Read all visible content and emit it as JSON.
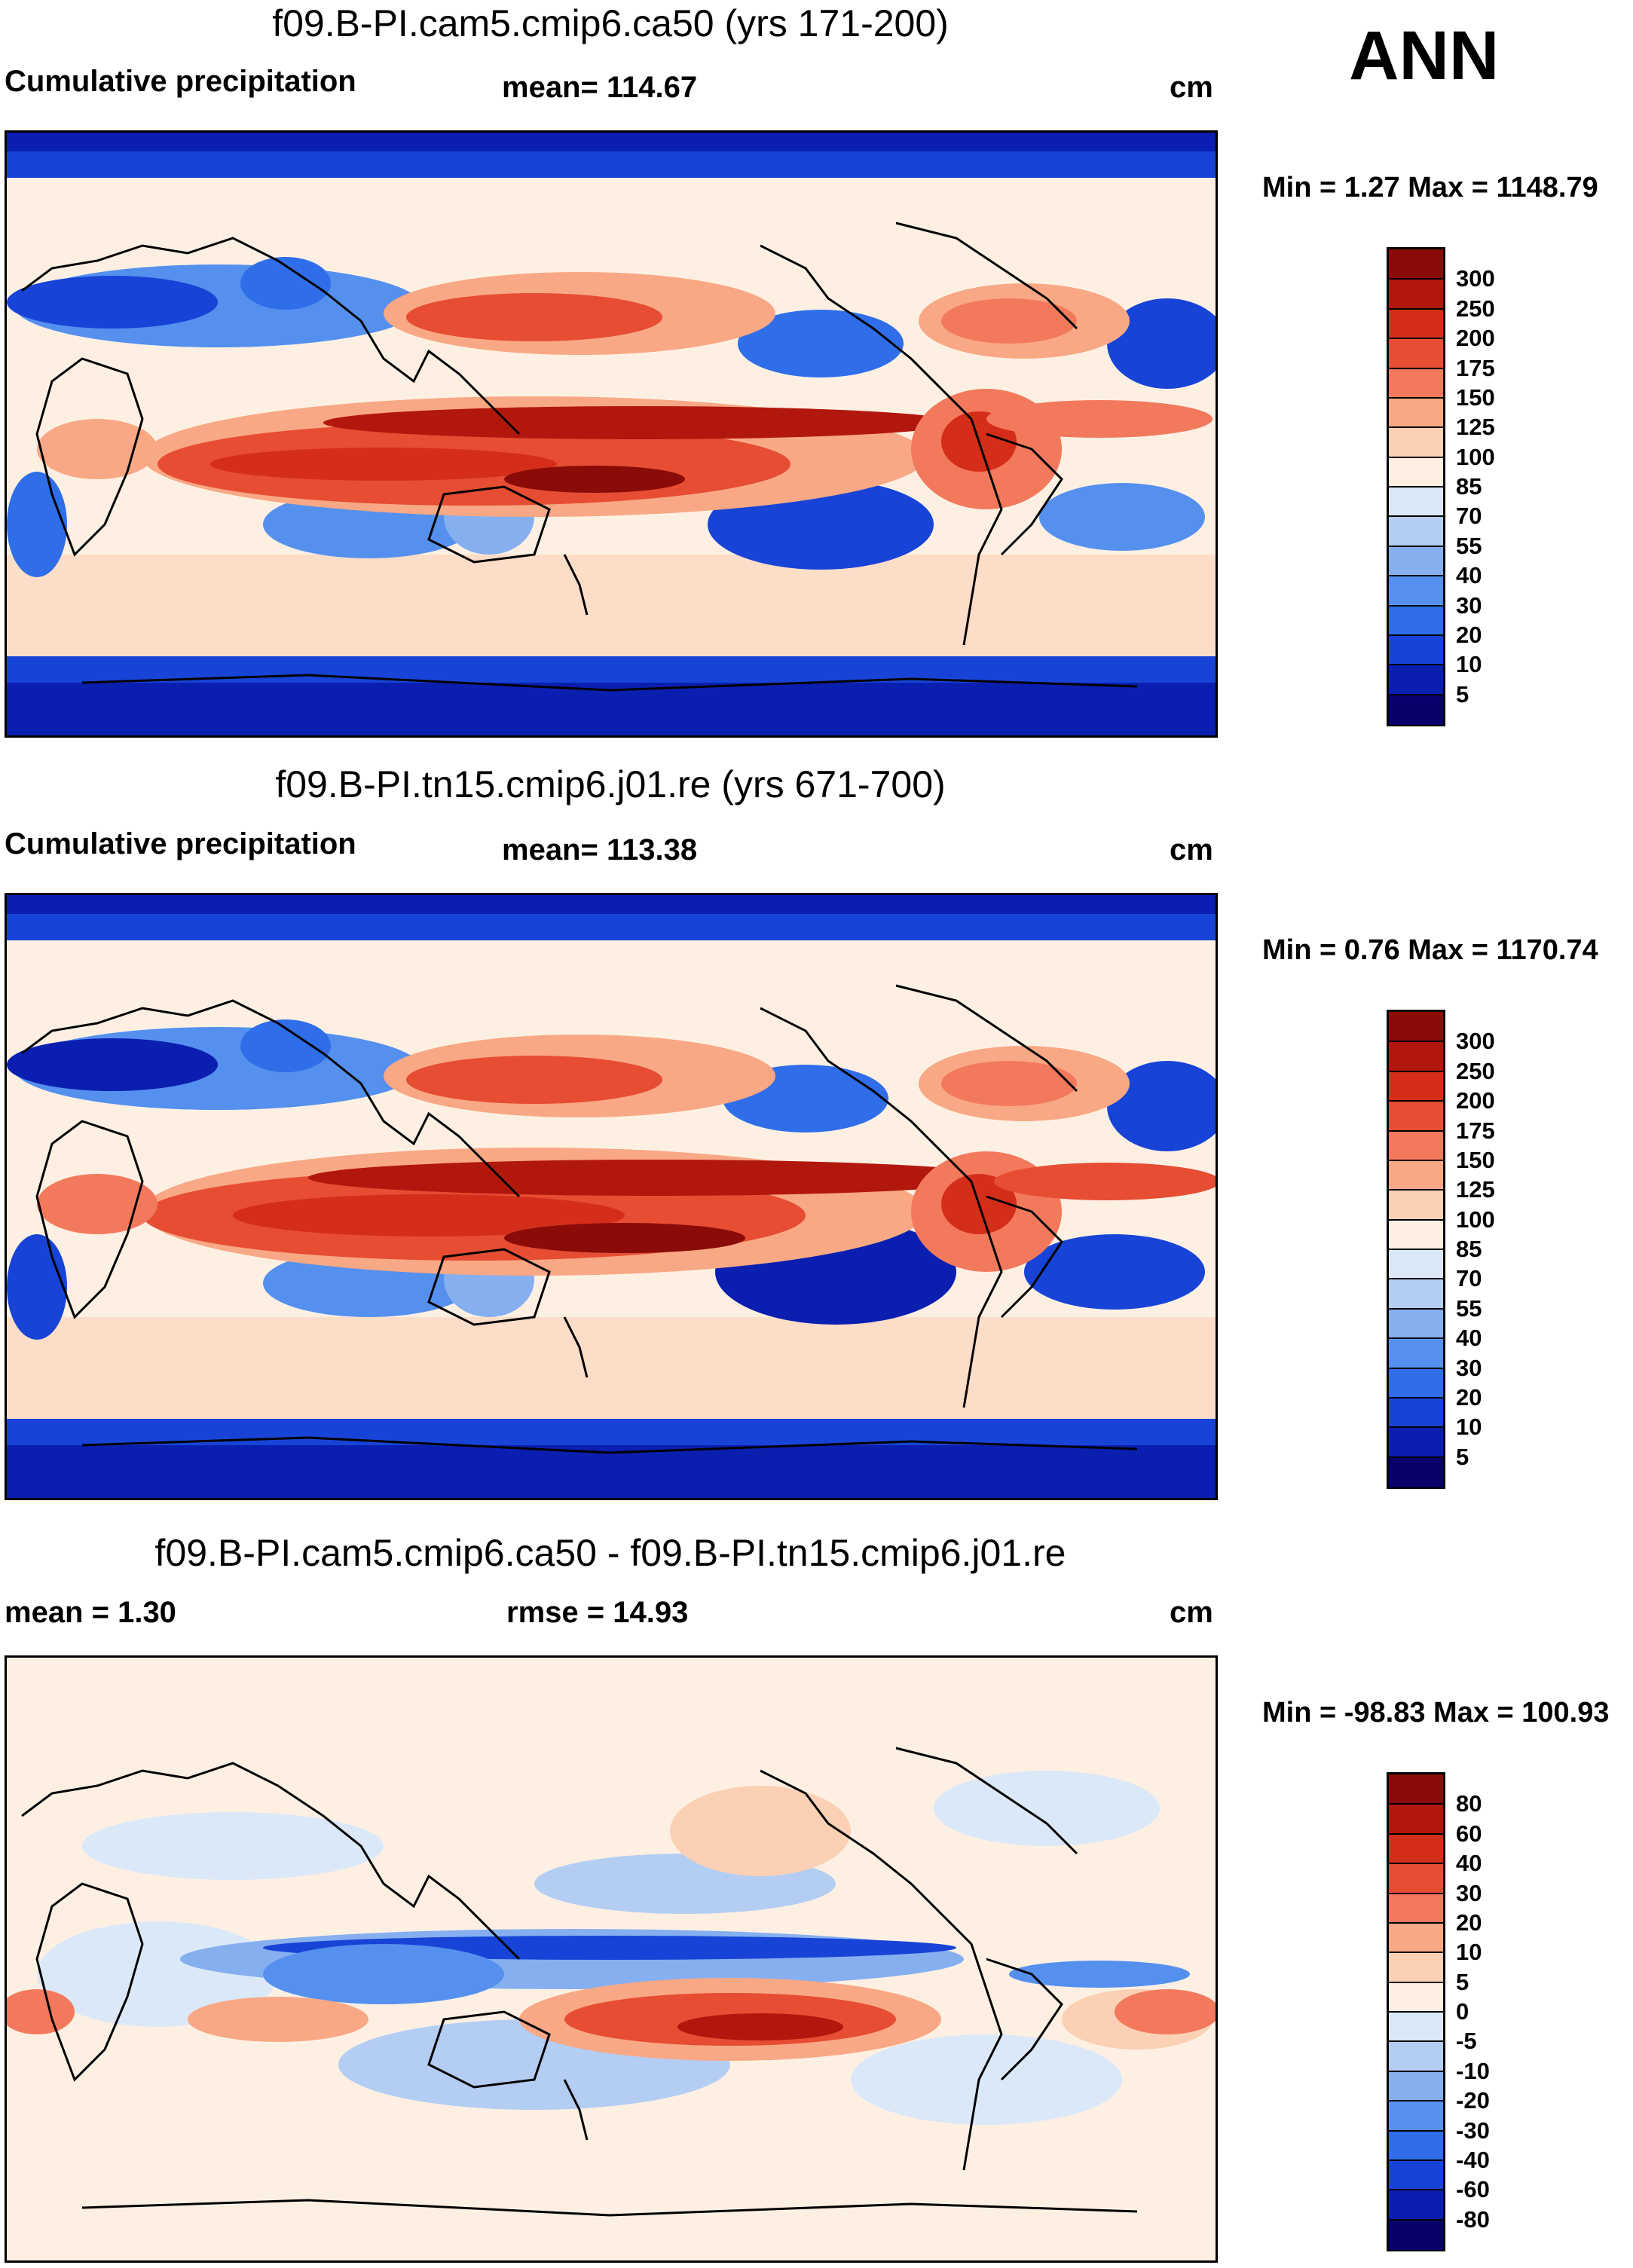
{
  "season": "ANN",
  "units_note": "cm",
  "colors": {
    "precip_scale": [
      "#08006b",
      "#0a1fb0",
      "#1744d6",
      "#2f6ee8",
      "#5590ef",
      "#86afef",
      "#b4cdf3",
      "#dbe8f8",
      "#fdf0e3",
      "#fbd0b4",
      "#f8a884",
      "#f3795c",
      "#e64d33",
      "#d42e1a",
      "#b2170d",
      "#8a0b07"
    ],
    "diff_scale": [
      "#08006b",
      "#0a1fb0",
      "#1744d6",
      "#2f6ee8",
      "#5590ef",
      "#86afef",
      "#b4cdf3",
      "#dbe8f8",
      "#fdf0e3",
      "#fbd0b4",
      "#f8a884",
      "#f3795c",
      "#e64d33",
      "#d42e1a",
      "#b2170d",
      "#8a0b07"
    ]
  },
  "panels": [
    {
      "title": "f09.B-PI.cam5.cmip6.ca50 (yrs 171-200)",
      "left_label": "Cumulative precipitation",
      "center_label": "mean= 114.67",
      "right_label": "cm",
      "minmax": "Min =   1.27 Max = 1148.79",
      "colorbar_labels": [
        "300",
        "250",
        "200",
        "175",
        "150",
        "125",
        "100",
        "85",
        "70",
        "55",
        "40",
        "30",
        "20",
        "10",
        "5"
      ]
    },
    {
      "title": "f09.B-PI.tn15.cmip6.j01.re (yrs 671-700)",
      "left_label": "Cumulative precipitation",
      "center_label": "mean= 113.38",
      "right_label": "cm",
      "minmax": "Min =   0.76 Max = 1170.74",
      "colorbar_labels": [
        "300",
        "250",
        "200",
        "175",
        "150",
        "125",
        "100",
        "85",
        "70",
        "55",
        "40",
        "30",
        "20",
        "10",
        "5"
      ]
    },
    {
      "title": "f09.B-PI.cam5.cmip6.ca50 - f09.B-PI.tn15.cmip6.j01.re",
      "left_label": "mean =   1.30",
      "center_label": "rmse =  14.93",
      "right_label": "cm",
      "minmax": "Min = -98.83 Max = 100.93",
      "colorbar_labels": [
        "80",
        "60",
        "40",
        "30",
        "20",
        "10",
        "5",
        "0",
        "-5",
        "-10",
        "-20",
        "-30",
        "-40",
        "-60",
        "-80"
      ]
    }
  ]
}
